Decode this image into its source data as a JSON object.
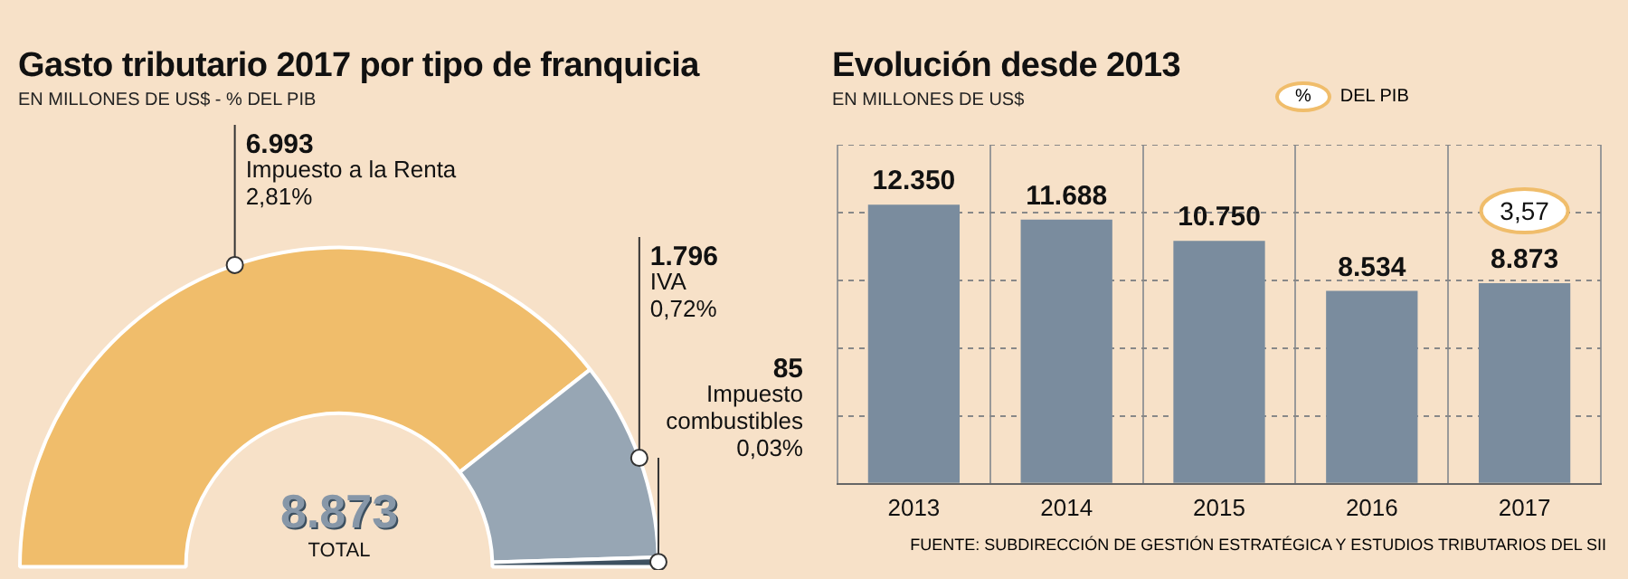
{
  "chart_data": [
    {
      "type": "donut",
      "title": "Gasto tributario 2017 por tipo de franquicia",
      "subtitle": "EN MILLONES DE US$ - % DEL PIB",
      "categories": [
        "Impuesto a la Renta",
        "IVA",
        "Impuesto combustibles"
      ],
      "values": [
        6993,
        1796,
        85
      ],
      "colors": [
        "#f0bd6b",
        "#97a6b4",
        "#3d5060"
      ],
      "value_labels": [
        "6.993",
        "1.796",
        "85"
      ],
      "annotations": [
        "2,81%",
        "0,72%",
        "0,03%",
        "8.873",
        "TOTAL"
      ]
    },
    {
      "type": "bar",
      "title": "Evolución desde 2013",
      "subtitle": "EN MILLONES DE US$",
      "categories": [
        "2013",
        "2014",
        "2015",
        "2016",
        "2017"
      ],
      "values": [
        12350,
        11688,
        10750,
        8534,
        8873
      ],
      "color": "#7a8c9e",
      "value_labels": [
        "12.350",
        "11.688",
        "10.750",
        "8.534",
        "8.873"
      ],
      "ylim": [
        0,
        15000
      ],
      "yticks": [
        {
          "value": 0,
          "label": null
        },
        {
          "value": 3000,
          "label": null
        },
        {
          "value": 6000,
          "label": null
        },
        {
          "value": 9000,
          "label": null
        },
        {
          "value": 12000,
          "label": null
        },
        {
          "value": 15000,
          "label": null
        }
      ],
      "tick_labels": "x",
      "grid": true,
      "annotations": [
        "3,57",
        "% DEL PIB",
        "FUENTE: SUBDIRECCIÓN DE GESTIÓN ESTRATÉGICA Y ESTUDIOS TRIBUTARIOS DEL SII"
      ]
    }
  ]
}
